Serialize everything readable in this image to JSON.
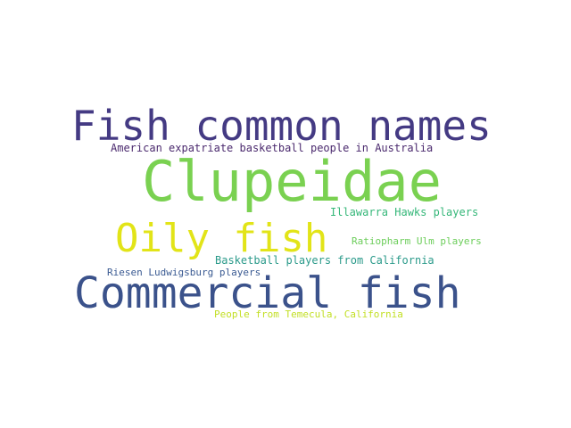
{
  "words": [
    {
      "text": "Fish common names",
      "color": "#443a83"
    },
    {
      "text": "American expatriate basketball people in Australia",
      "color": "#4b2a6e"
    },
    {
      "text": "Clupeidae",
      "color": "#7ad151"
    },
    {
      "text": "Illawarra Hawks players",
      "color": "#35b779"
    },
    {
      "text": "Oily fish",
      "color": "#e2e418"
    },
    {
      "text": "Ratiopharm Ulm players",
      "color": "#6ccd5a"
    },
    {
      "text": "Basketball players from California",
      "color": "#2a9a8a"
    },
    {
      "text": "Riesen Ludwigsburg players",
      "color": "#3a5a92"
    },
    {
      "text": "Commercial fish",
      "color": "#3b528b"
    },
    {
      "text": "People from Temecula, California",
      "color": "#c2df23"
    }
  ]
}
